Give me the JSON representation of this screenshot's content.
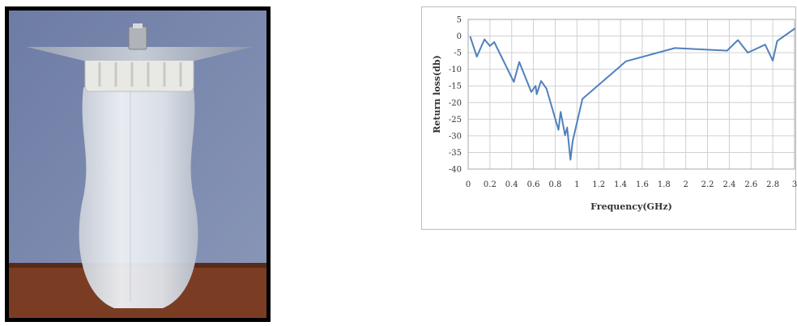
{
  "photo": {
    "subject": "antenna-on-bottle-photo"
  },
  "chart_data": {
    "type": "line",
    "title": "",
    "xlabel": "Frequency(GHz)",
    "ylabel": "Return loss(db)",
    "xlim": [
      0,
      3
    ],
    "ylim": [
      -40,
      5
    ],
    "xticks": [
      "0",
      "0.2",
      "0.4",
      "0.6",
      "0.8",
      "1",
      "1.2",
      "1.4",
      "1.6",
      "1.8",
      "2",
      "2.2",
      "2.4",
      "2.6",
      "2.8",
      "3"
    ],
    "yticks": [
      "5",
      "0",
      "-5",
      "-10",
      "-15",
      "-20",
      "-25",
      "-30",
      "-35",
      "-40"
    ],
    "grid": true,
    "line_color": "#4f81bd",
    "series": [
      {
        "x": [
          0.02,
          0.08,
          0.15,
          0.2,
          0.24,
          0.42,
          0.47,
          0.58,
          0.62,
          0.63,
          0.67,
          0.72,
          0.83,
          0.85,
          0.89,
          0.91,
          0.94,
          0.96,
          1.05,
          1.45,
          1.9,
          2.38,
          2.48,
          2.57,
          2.73,
          2.8,
          2.84,
          3.0
        ],
        "y": [
          -0.3,
          -6.2,
          -1.0,
          -3.0,
          -1.8,
          -13.8,
          -7.8,
          -16.8,
          -15.0,
          -17.5,
          -13.5,
          -15.8,
          -28.2,
          -22.8,
          -29.8,
          -27.5,
          -37.2,
          -31.6,
          -18.9,
          -7.6,
          -3.6,
          -4.4,
          -1.2,
          -5.0,
          -2.6,
          -7.4,
          -1.5,
          2.2
        ]
      }
    ]
  }
}
